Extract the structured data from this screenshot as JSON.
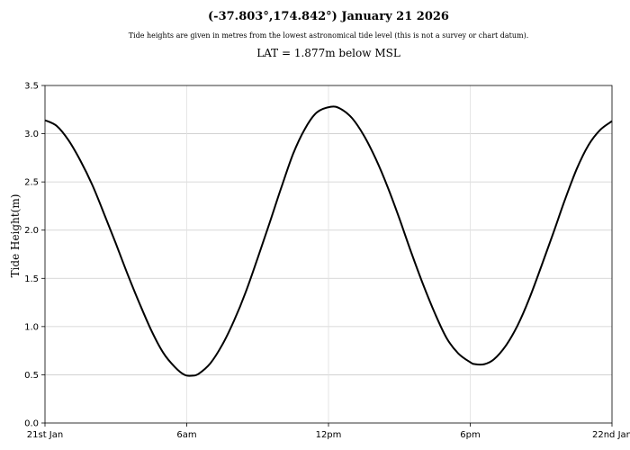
{
  "chart_data": {
    "type": "line",
    "title": "(-37.803°,174.842°) January 21 2026",
    "subtitle": "Tide heights are given in metres from the lowest astronomical tide level (this is not a survey or chart datum).",
    "note": "LAT = 1.877m below MSL",
    "ylabel": "Tide Height(m)",
    "ylim": [
      0,
      3.5
    ],
    "xlim": [
      0,
      24
    ],
    "yticks": [
      0.0,
      0.5,
      1.0,
      1.5,
      2.0,
      2.5,
      3.0,
      3.5
    ],
    "ytick_labels": [
      "0.0",
      "0.5",
      "1.0",
      "1.5",
      "2.0",
      "2.5",
      "3.0",
      "3.5"
    ],
    "xticks": [
      0,
      6,
      12,
      18,
      24
    ],
    "xtick_labels": [
      "21st Jan",
      "6am",
      "12pm",
      "6pm",
      "22nd Jan"
    ],
    "grid": true,
    "series": [
      {
        "x": [
          0,
          0.5,
          1,
          1.5,
          2,
          2.5,
          3,
          3.5,
          4,
          4.5,
          5,
          5.5,
          5.9,
          6.2,
          6.5,
          7,
          7.5,
          8,
          8.5,
          9,
          9.5,
          10,
          10.5,
          11,
          11.5,
          12.1,
          12.5,
          13,
          13.5,
          14,
          14.5,
          15,
          15.5,
          16,
          16.5,
          17,
          17.5,
          18,
          18.2,
          18.6,
          19,
          19.5,
          20,
          20.5,
          21,
          21.5,
          22,
          22.5,
          23,
          23.5,
          24
        ],
        "y": [
          3.14,
          3.08,
          2.93,
          2.72,
          2.47,
          2.17,
          1.86,
          1.54,
          1.24,
          0.96,
          0.73,
          0.58,
          0.5,
          0.49,
          0.51,
          0.62,
          0.81,
          1.06,
          1.36,
          1.71,
          2.07,
          2.44,
          2.79,
          3.05,
          3.22,
          3.28,
          3.26,
          3.16,
          2.98,
          2.74,
          2.45,
          2.12,
          1.77,
          1.44,
          1.14,
          0.88,
          0.72,
          0.63,
          0.61,
          0.61,
          0.66,
          0.8,
          1.01,
          1.29,
          1.62,
          1.96,
          2.31,
          2.63,
          2.88,
          3.04,
          3.13
        ],
        "color": "#000000"
      }
    ]
  }
}
